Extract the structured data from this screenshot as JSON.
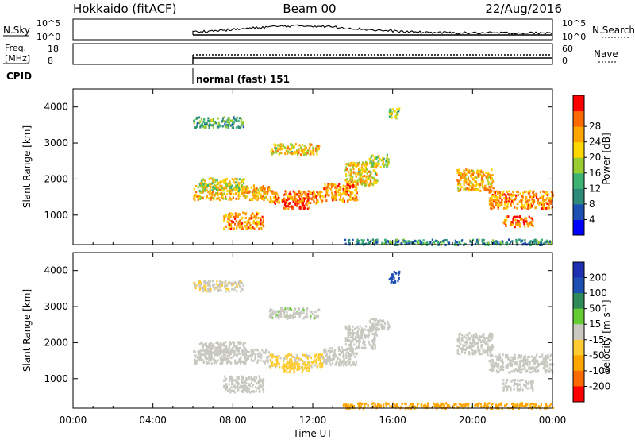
{
  "header": {
    "station": "Hokkaido (fitACF)",
    "beam": "Beam 00",
    "date": "22/Aug/2016"
  },
  "noise_panel": {
    "left_label": "N.Sky",
    "right_label": "N.Search",
    "left_ticks": [
      "10^5",
      "10^0"
    ],
    "right_ticks": [
      "10^5",
      "10^0"
    ]
  },
  "freq_panel": {
    "left_label_line1": "Freq.",
    "left_label_line2": "[MHz]",
    "left_ticks": [
      "18",
      "8"
    ],
    "right_ticks": [
      "60",
      "0"
    ],
    "right_label": "Nave"
  },
  "cpid": {
    "label": "CPID",
    "mode": "normal (fast) 151"
  },
  "time_axis": {
    "ticks": [
      "00:00",
      "04:00",
      "08:00",
      "12:00",
      "16:00",
      "20:00",
      "00:00"
    ],
    "title": "Time UT"
  },
  "range_axis": {
    "title": "Slant Range [km]",
    "ticks": [
      "1000",
      "2000",
      "3000",
      "4000"
    ]
  },
  "colors": {
    "power_scale": [
      "#0000ff",
      "#1e50b4",
      "#2e8b7a",
      "#3cb371",
      "#9acd32",
      "#ffd700",
      "#ffa500",
      "#ff6a00",
      "#ff0000"
    ],
    "velocity_scale": [
      "#1e2fb4",
      "#1e50b4",
      "#2e8b57",
      "#66cc33",
      "#c8c8c0",
      "#ffcc33",
      "#ffa500",
      "#ff6a00",
      "#ff0000"
    ]
  },
  "chart_data": [
    {
      "type": "heatmap",
      "name": "power",
      "x_range_hours": [
        0,
        24
      ],
      "y_range_km": [
        180,
        4500
      ],
      "colorbar": {
        "label": "Power [dB]",
        "ticks": [
          "4",
          "8",
          "12",
          "16",
          "20",
          "24",
          "28"
        ],
        "min": 0,
        "max": 32
      },
      "bands": [
        {
          "t": [
            6.0,
            9.8
          ],
          "r": [
            1450,
            1850
          ],
          "v": 22
        },
        {
          "t": [
            6.3,
            8.6
          ],
          "r": [
            1700,
            2050
          ],
          "v": 18
        },
        {
          "t": [
            7.5,
            9.5
          ],
          "r": [
            650,
            1100
          ],
          "v": 24
        },
        {
          "t": [
            9.8,
            12.5
          ],
          "r": [
            1350,
            1700
          ],
          "v": 25
        },
        {
          "t": [
            10.5,
            11.8
          ],
          "r": [
            1200,
            1500
          ],
          "v": 28
        },
        {
          "t": [
            12.5,
            14.2
          ],
          "r": [
            1400,
            1900
          ],
          "v": 24
        },
        {
          "t": [
            13.6,
            15.2
          ],
          "r": [
            1850,
            2500
          ],
          "v": 20
        },
        {
          "t": [
            14.8,
            15.8
          ],
          "r": [
            2350,
            2700
          ],
          "v": 16
        },
        {
          "t": [
            9.8,
            12.3
          ],
          "r": [
            2700,
            3000
          ],
          "v": 20
        },
        {
          "t": [
            6.0,
            8.5
          ],
          "r": [
            3450,
            3750
          ],
          "v": 12
        },
        {
          "t": [
            15.8,
            16.3
          ],
          "r": [
            3700,
            4000
          ],
          "v": 16
        },
        {
          "t": [
            19.2,
            21.0
          ],
          "r": [
            1700,
            2300
          ],
          "v": 22
        },
        {
          "t": [
            20.8,
            24.0
          ],
          "r": [
            1200,
            1700
          ],
          "v": 24
        },
        {
          "t": [
            21.5,
            23.0
          ],
          "r": [
            700,
            1000
          ],
          "v": 26
        },
        {
          "t": [
            13.5,
            24.0
          ],
          "r": [
            200,
            350
          ],
          "v": 10
        }
      ]
    },
    {
      "type": "heatmap",
      "name": "velocity",
      "x_range_hours": [
        0,
        24
      ],
      "y_range_km": [
        180,
        4500
      ],
      "colorbar": {
        "label": "Velocity [m s⁻¹]",
        "ticks": [
          "200",
          "100",
          "50",
          "15",
          "-15",
          "-50",
          "-100",
          "-200"
        ],
        "min": -250,
        "max": 250
      },
      "bands": [
        {
          "t": [
            6.0,
            9.8
          ],
          "r": [
            1450,
            1850
          ],
          "v": 0
        },
        {
          "t": [
            6.3,
            8.6
          ],
          "r": [
            1700,
            2050
          ],
          "v": 0
        },
        {
          "t": [
            7.5,
            9.5
          ],
          "r": [
            650,
            1100
          ],
          "v": 0
        },
        {
          "t": [
            9.8,
            12.5
          ],
          "r": [
            1350,
            1700
          ],
          "v": -20
        },
        {
          "t": [
            10.5,
            11.8
          ],
          "r": [
            1200,
            1500
          ],
          "v": -30
        },
        {
          "t": [
            12.5,
            14.2
          ],
          "r": [
            1400,
            1900
          ],
          "v": 0
        },
        {
          "t": [
            13.6,
            15.2
          ],
          "r": [
            1850,
            2500
          ],
          "v": 0
        },
        {
          "t": [
            14.8,
            15.8
          ],
          "r": [
            2350,
            2700
          ],
          "v": 0
        },
        {
          "t": [
            9.8,
            12.3
          ],
          "r": [
            2700,
            3000
          ],
          "v": 5
        },
        {
          "t": [
            6.0,
            8.5
          ],
          "r": [
            3450,
            3750
          ],
          "v": -10
        },
        {
          "t": [
            15.8,
            16.3
          ],
          "r": [
            3700,
            4000
          ],
          "v": 120
        },
        {
          "t": [
            19.2,
            21.0
          ],
          "r": [
            1700,
            2300
          ],
          "v": 0
        },
        {
          "t": [
            20.8,
            24.0
          ],
          "r": [
            1200,
            1700
          ],
          "v": 0
        },
        {
          "t": [
            21.5,
            23.0
          ],
          "r": [
            700,
            1000
          ],
          "v": 0
        },
        {
          "t": [
            13.5,
            24.0
          ],
          "r": [
            200,
            350
          ],
          "v": -60
        }
      ]
    }
  ]
}
